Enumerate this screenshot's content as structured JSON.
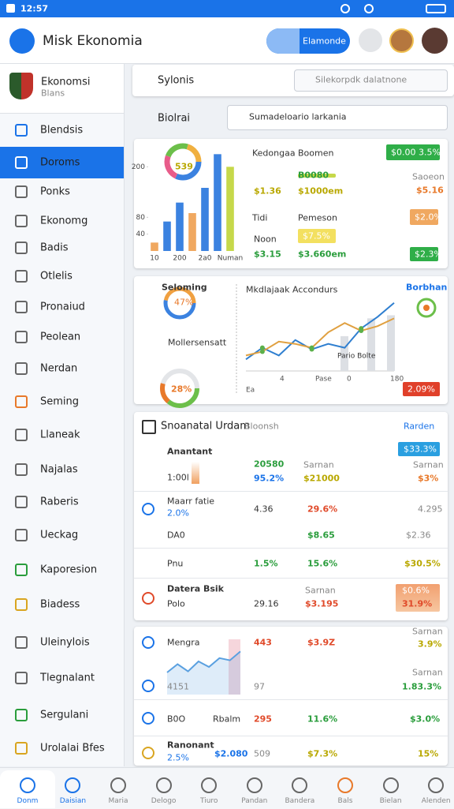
{
  "status": {
    "time": "12:57"
  },
  "header": {
    "title": "Misk Ekonomia",
    "button": "Elamonde"
  },
  "sidebar": {
    "profile": {
      "name": "Ekonomsi",
      "sub": "Blans"
    },
    "items": [
      "Blendsis",
      "Doroms",
      "Ponks",
      "Ekonomg",
      "Badis",
      "Otlelis",
      "Pronaiud",
      "Peolean",
      "Nerdan",
      "Seming",
      "Llaneak",
      "Najalas",
      "Raberis",
      "Ueckag",
      "Kaporesion",
      "Biadess",
      "Uleinylois",
      "Tlegnalant",
      "Sergulani",
      "Urolalai Bfes"
    ]
  },
  "search": {
    "placeholder": "Sylonis",
    "filter": "Silekorpdk dalatnone"
  },
  "toolbar": {
    "label": "Biolrai",
    "select": "Sumadeloario larkania"
  },
  "overview": {
    "chart": {
      "type": "bar",
      "donut_label": "539",
      "categories": [
        "10",
        null,
        "200",
        null,
        "2a0",
        null,
        "Numan"
      ],
      "values": [
        20,
        70,
        115,
        90,
        150,
        230,
        200
      ],
      "colors": [
        "#f0a860",
        "#3b82e0",
        "#3b82e0",
        "#f0a860",
        "#3b82e0",
        "#3b82e0",
        "#c6d84a"
      ],
      "ylim": [
        0,
        240
      ],
      "yticks": [
        40,
        80,
        200
      ]
    },
    "stats": [
      "Kedongaa",
      "Boomen",
      "$0.00 3.5%",
      "B0080",
      "Saoeon",
      "$1.36",
      "$1000em",
      "$5.16",
      "Tidi",
      "Pemeson",
      "$2.0%",
      "Noon",
      "$7.5%",
      "$3.15",
      "$3.660em",
      "$2.3%"
    ]
  },
  "trend": {
    "left_title": "Seloming",
    "donut_label": "47%",
    "subtitle": "Mollersensatt",
    "donut2_label": "28%",
    "legend": "Borbhan",
    "badge": "2.09%",
    "chart": {
      "type": "line",
      "title": "Mkdlajaak Accondurs",
      "ylim": [
        0,
        100
      ],
      "xlabels": [
        "Ea",
        "4",
        "Pase",
        "0",
        "180"
      ],
      "annotation": "Pario Bolte",
      "series": [
        {
          "color": "#2f7fd0",
          "values": [
            15,
            30,
            20,
            40,
            28,
            35,
            30,
            55,
            70,
            88
          ]
        },
        {
          "color": "#e0a040",
          "values": [
            20,
            25,
            38,
            35,
            30,
            50,
            62,
            52,
            58,
            68
          ]
        }
      ],
      "bars": {
        "color": "#dcdfe4",
        "values": [
          45,
          68,
          72
        ]
      }
    }
  },
  "table": {
    "title": "Snoanatal Urdam",
    "title_muted": "Bloonsh",
    "action": "Rarden",
    "badge": "$33.3%",
    "header": "Anantant",
    "rows": [
      [
        "1:00l",
        "20580",
        "95.2%",
        "Sarnan",
        "$21000",
        "Sarnan",
        "$3%"
      ],
      [
        "Maarr fatie",
        "2.0%",
        "4.36",
        "29.6%",
        "4.295"
      ],
      [
        "DA0",
        "$8.65",
        "$2.36"
      ],
      [
        "Pnu",
        "1.5%",
        "15.6%",
        "$30.5%"
      ],
      [
        "Datera Bsik",
        "Polo",
        "29.16",
        "Sarnan",
        "$3.195",
        "$0.6%",
        "31.9%"
      ]
    ]
  },
  "list": {
    "spark": {
      "type": "area",
      "color": "#5aa0e0",
      "values": [
        40,
        55,
        42,
        60,
        50,
        66,
        62,
        78
      ]
    },
    "rows": [
      [
        "Mengra",
        "443",
        "$3.9Z",
        "Sarnan",
        "3.9%",
        "4151",
        "97",
        "Sarnan",
        "1.83.3%"
      ],
      [
        "B0O",
        "Rbalm",
        "295",
        "11.6%",
        "$3.0%"
      ],
      [
        "Ranonant",
        "2.5%",
        "$2.080",
        "509",
        "$7.3%",
        "15%"
      ]
    ]
  },
  "nav": [
    "Donm",
    "Daisian",
    "Maria",
    "Delogo",
    "Tiuro",
    "Pandan",
    "Bandera",
    "Bals",
    "Bielan",
    "Alenden"
  ]
}
